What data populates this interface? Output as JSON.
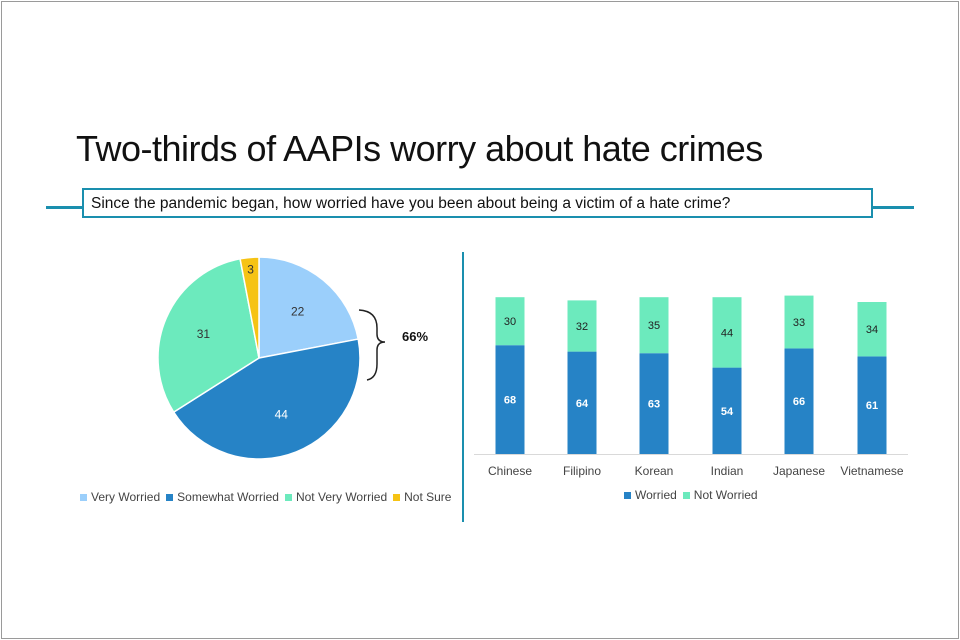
{
  "title": "Two-thirds of AAPIs worry about hate crimes",
  "question": "Since the pandemic began, how worried have you been about being a victim of a hate crime?",
  "colors": {
    "accent": "#1a8fae",
    "very_worried": "#9bcffb",
    "somewhat_worried": "#2683c6",
    "not_very_worried": "#6ceabd",
    "not_sure": "#f6c314"
  },
  "chart_data": [
    {
      "type": "pie",
      "categories": [
        "Very Worried",
        "Somewhat Worried",
        "Not Very Worried",
        "Not Sure"
      ],
      "values": [
        22,
        44,
        31,
        3
      ],
      "annotation": "66%",
      "legend": "bottom"
    },
    {
      "type": "bar",
      "stacked": true,
      "categories": [
        "Chinese",
        "Filipino",
        "Korean",
        "Indian",
        "Japanese",
        "Vietnamese"
      ],
      "series": [
        {
          "name": "Worried",
          "values": [
            68,
            64,
            63,
            54,
            66,
            61
          ]
        },
        {
          "name": "Not Worried",
          "values": [
            30,
            32,
            35,
            44,
            33,
            34
          ]
        }
      ],
      "legend": "bottom"
    }
  ]
}
